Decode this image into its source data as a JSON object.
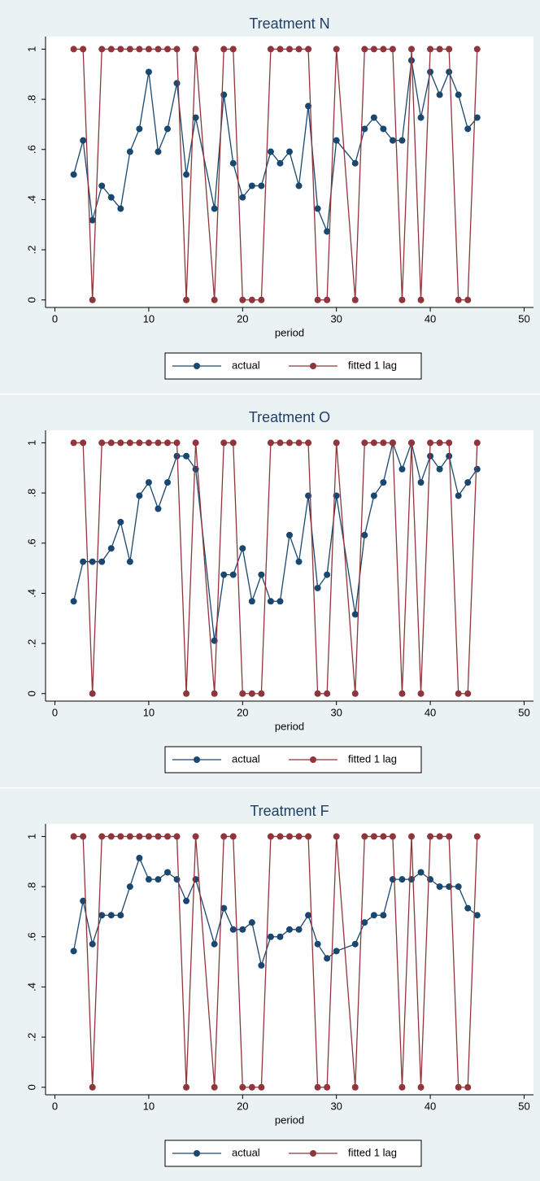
{
  "chart_data": [
    {
      "type": "line",
      "title": "Treatment N",
      "xlabel": "period",
      "legend": "bottom",
      "x": [
        2,
        3,
        4,
        5,
        6,
        7,
        8,
        9,
        10,
        11,
        12,
        13,
        14,
        15,
        17,
        18,
        19,
        20,
        21,
        22,
        23,
        24,
        25,
        26,
        27,
        28,
        29,
        30,
        32,
        33,
        34,
        35,
        36,
        37,
        38,
        39,
        40,
        41,
        42,
        43,
        44,
        45
      ],
      "xlim": [
        -1,
        51
      ],
      "xticks": [
        0,
        10,
        20,
        30,
        40,
        50
      ],
      "ylim": [
        -0.03,
        1.05
      ],
      "yticks": [
        0,
        {
          "value": 0.2,
          "label": ".2"
        },
        {
          "value": 0.4,
          "label": ".4"
        },
        {
          "value": 0.6,
          "label": ".6"
        },
        {
          "value": 0.8,
          "label": ".8"
        },
        1
      ],
      "series": [
        {
          "name": "actual",
          "color": "#1a476f",
          "values": [
            0.5,
            0.636,
            0.318,
            0.455,
            0.409,
            0.364,
            0.591,
            0.682,
            0.909,
            0.591,
            0.682,
            0.864,
            0.5,
            0.727,
            0.364,
            0.818,
            0.545,
            0.409,
            0.455,
            0.455,
            0.591,
            0.545,
            0.591,
            0.455,
            0.773,
            0.364,
            0.273,
            0.636,
            0.545,
            0.682,
            0.727,
            0.682,
            0.636,
            0.636,
            0.955,
            0.727,
            0.909,
            0.818,
            0.909,
            0.818,
            0.682,
            0.727
          ]
        },
        {
          "name": "fitted 1 lag",
          "color": "#90353b",
          "values": [
            1,
            1,
            0,
            1,
            1,
            1,
            1,
            1,
            1,
            1,
            1,
            1,
            0,
            1,
            0,
            1,
            1,
            0,
            0,
            0,
            1,
            1,
            1,
            1,
            1,
            0,
            0,
            1,
            0,
            1,
            1,
            1,
            1,
            0,
            1,
            0,
            1,
            1,
            1,
            0,
            0,
            1
          ]
        }
      ]
    },
    {
      "type": "line",
      "title": "Treatment O",
      "xlabel": "period",
      "legend": "bottom",
      "x": [
        2,
        3,
        4,
        5,
        6,
        7,
        8,
        9,
        10,
        11,
        12,
        13,
        14,
        15,
        17,
        18,
        19,
        20,
        21,
        22,
        23,
        24,
        25,
        26,
        27,
        28,
        29,
        30,
        32,
        33,
        34,
        35,
        36,
        37,
        38,
        39,
        40,
        41,
        42,
        43,
        44,
        45
      ],
      "xlim": [
        -1,
        51
      ],
      "xticks": [
        0,
        10,
        20,
        30,
        40,
        50
      ],
      "ylim": [
        -0.03,
        1.05
      ],
      "yticks": [
        0,
        {
          "value": 0.2,
          "label": ".2"
        },
        {
          "value": 0.4,
          "label": ".4"
        },
        {
          "value": 0.6,
          "label": ".6"
        },
        {
          "value": 0.8,
          "label": ".8"
        },
        1
      ],
      "series": [
        {
          "name": "actual",
          "color": "#1a476f",
          "values": [
            0.368,
            0.526,
            0.526,
            0.526,
            0.579,
            0.684,
            0.526,
            0.789,
            0.842,
            0.737,
            0.842,
            0.947,
            0.947,
            0.895,
            0.211,
            0.474,
            0.474,
            0.579,
            0.368,
            0.474,
            0.368,
            0.368,
            0.632,
            0.526,
            0.789,
            0.421,
            0.474,
            0.789,
            0.316,
            0.632,
            0.789,
            0.842,
            1,
            0.895,
            1,
            0.842,
            0.947,
            0.895,
            0.947,
            0.789,
            0.842,
            0.895
          ]
        },
        {
          "name": "fitted 1 lag",
          "color": "#90353b",
          "values": [
            1,
            1,
            0,
            1,
            1,
            1,
            1,
            1,
            1,
            1,
            1,
            1,
            0,
            1,
            0,
            1,
            1,
            0,
            0,
            0,
            1,
            1,
            1,
            1,
            1,
            0,
            0,
            1,
            0,
            1,
            1,
            1,
            1,
            0,
            1,
            0,
            1,
            1,
            1,
            0,
            0,
            1
          ]
        }
      ]
    },
    {
      "type": "line",
      "title": "Treatment F",
      "xlabel": "period",
      "legend": "bottom",
      "x": [
        2,
        3,
        4,
        5,
        6,
        7,
        8,
        9,
        10,
        11,
        12,
        13,
        14,
        15,
        17,
        18,
        19,
        20,
        21,
        22,
        23,
        24,
        25,
        26,
        27,
        28,
        29,
        30,
        32,
        33,
        34,
        35,
        36,
        37,
        38,
        39,
        40,
        41,
        42,
        43,
        44,
        45
      ],
      "xlim": [
        -1,
        51
      ],
      "xticks": [
        0,
        10,
        20,
        30,
        40,
        50
      ],
      "ylim": [
        -0.03,
        1.05
      ],
      "yticks": [
        0,
        {
          "value": 0.2,
          "label": ".2"
        },
        {
          "value": 0.4,
          "label": ".4"
        },
        {
          "value": 0.6,
          "label": ".6"
        },
        {
          "value": 0.8,
          "label": ".8"
        },
        1
      ],
      "series": [
        {
          "name": "actual",
          "color": "#1a476f",
          "values": [
            0.543,
            0.743,
            0.571,
            0.686,
            0.686,
            0.686,
            0.8,
            0.914,
            0.829,
            0.829,
            0.857,
            0.829,
            0.743,
            0.829,
            0.571,
            0.714,
            0.629,
            0.629,
            0.657,
            0.486,
            0.6,
            0.6,
            0.629,
            0.629,
            0.686,
            0.571,
            0.514,
            0.543,
            0.571,
            0.657,
            0.686,
            0.686,
            0.829,
            0.829,
            0.829,
            0.857,
            0.829,
            0.8,
            0.8,
            0.8,
            0.714,
            0.686
          ]
        },
        {
          "name": "fitted 1 lag",
          "color": "#90353b",
          "values": [
            1,
            1,
            0,
            1,
            1,
            1,
            1,
            1,
            1,
            1,
            1,
            1,
            0,
            1,
            0,
            1,
            1,
            0,
            0,
            0,
            1,
            1,
            1,
            1,
            1,
            0,
            0,
            1,
            0,
            1,
            1,
            1,
            1,
            0,
            1,
            0,
            1,
            1,
            1,
            0,
            0,
            1
          ]
        }
      ]
    }
  ]
}
